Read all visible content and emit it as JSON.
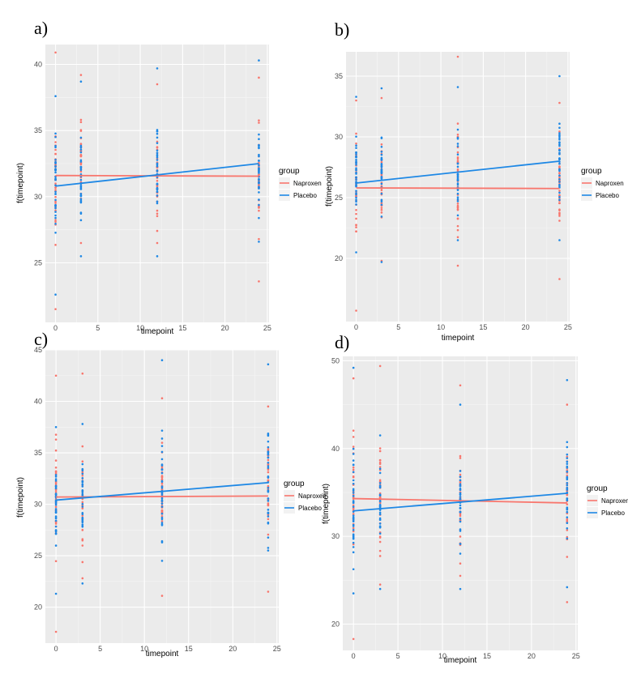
{
  "colors": {
    "naproxen": "#F8766D",
    "placebo": "#1E88E5",
    "panel_bg": "#EBEBEB",
    "grid_major": "#FFFFFF",
    "legend_key_bg": "#F2F2F2"
  },
  "chart_data": [
    {
      "type": "scatter",
      "panel_label": "a)",
      "xlabel": "timepoint",
      "ylabel": "f(timepoint)",
      "xlim": [
        -1.2,
        25.2
      ],
      "ylim": [
        20.5,
        41.5
      ],
      "x_ticks": [
        0,
        5,
        10,
        15,
        20,
        25
      ],
      "y_ticks": [
        25,
        30,
        35,
        40
      ],
      "x_tick_labels": [
        "0",
        "5",
        "10",
        "15",
        "20",
        "25"
      ],
      "y_tick_labels": [
        "25",
        "30",
        "35",
        "40"
      ],
      "legend": {
        "title": "group",
        "entries": [
          "Naproxen",
          "Placebo"
        ]
      },
      "series": [
        {
          "name": "Naproxen",
          "color_key": "naproxen",
          "points": {
            "0": {
              "min": 21.5,
              "max": 40.9,
              "center": 31.5,
              "n": 38
            },
            "3": {
              "min": 26.5,
              "max": 39.2,
              "center": 32.5,
              "n": 34
            },
            "12": {
              "min": 26.5,
              "max": 38.5,
              "center": 31.5,
              "n": 34
            },
            "24": {
              "min": 23.6,
              "max": 39.0,
              "center": 31.5,
              "n": 36
            }
          },
          "fit": {
            "x": [
              0,
              24
            ],
            "y": [
              31.6,
              31.55
            ]
          }
        },
        {
          "name": "Placebo",
          "color_key": "placebo",
          "points": {
            "0": {
              "min": 22.6,
              "max": 37.6,
              "center": 31.0,
              "n": 38
            },
            "3": {
              "min": 25.5,
              "max": 38.7,
              "center": 31.0,
              "n": 34
            },
            "12": {
              "min": 25.5,
              "max": 39.7,
              "center": 32.0,
              "n": 34
            },
            "24": {
              "min": 26.6,
              "max": 40.3,
              "center": 32.0,
              "n": 36
            }
          },
          "fit": {
            "x": [
              0,
              24
            ],
            "y": [
              30.8,
              32.5
            ]
          }
        }
      ]
    },
    {
      "type": "scatter",
      "panel_label": "b)",
      "xlabel": "timepoint",
      "ylabel": "f(timepoint)",
      "xlim": [
        -1.2,
        25.2
      ],
      "ylim": [
        14.8,
        37.0
      ],
      "x_ticks": [
        0,
        5,
        10,
        15,
        20,
        25
      ],
      "y_ticks": [
        20,
        25,
        30,
        35
      ],
      "x_tick_labels": [
        "0",
        "5",
        "10",
        "15",
        "20",
        "25"
      ],
      "y_tick_labels": [
        "20",
        "25",
        "30",
        "35"
      ],
      "legend": {
        "title": "group",
        "entries": [
          "Naproxen",
          "Placebo"
        ]
      },
      "series": [
        {
          "name": "Naproxen",
          "color_key": "naproxen",
          "points": {
            "0": {
              "min": 15.7,
              "max": 33.0,
              "center": 26.0,
              "n": 38
            },
            "3": {
              "min": 19.8,
              "max": 33.2,
              "center": 26.0,
              "n": 34
            },
            "12": {
              "min": 19.4,
              "max": 36.6,
              "center": 26.0,
              "n": 34
            },
            "24": {
              "min": 18.3,
              "max": 32.8,
              "center": 26.0,
              "n": 36
            }
          },
          "fit": {
            "x": [
              0,
              24
            ],
            "y": [
              25.8,
              25.75
            ]
          }
        },
        {
          "name": "Placebo",
          "color_key": "placebo",
          "points": {
            "0": {
              "min": 20.5,
              "max": 33.3,
              "center": 27.0,
              "n": 38
            },
            "3": {
              "min": 19.7,
              "max": 34.0,
              "center": 27.0,
              "n": 34
            },
            "12": {
              "min": 21.5,
              "max": 34.1,
              "center": 27.0,
              "n": 34
            },
            "24": {
              "min": 21.5,
              "max": 35.0,
              "center": 28.0,
              "n": 36
            }
          },
          "fit": {
            "x": [
              0,
              24
            ],
            "y": [
              26.2,
              28.0
            ]
          }
        }
      ]
    },
    {
      "type": "scatter",
      "panel_label": "c)",
      "xlabel": "timepoint",
      "ylabel": "f(timepoint)",
      "xlim": [
        -1.2,
        25.2
      ],
      "ylim": [
        16.5,
        45.0
      ],
      "x_ticks": [
        0,
        5,
        10,
        15,
        20,
        25
      ],
      "y_ticks": [
        20,
        25,
        30,
        35,
        40,
        45
      ],
      "x_tick_labels": [
        "0",
        "5",
        "10",
        "15",
        "20",
        "25"
      ],
      "y_tick_labels": [
        "20",
        "25",
        "30",
        "35",
        "40",
        "45"
      ],
      "legend": {
        "title": "group",
        "entries": [
          "Naproxen",
          "Placebo"
        ]
      },
      "series": [
        {
          "name": "Naproxen",
          "color_key": "naproxen",
          "points": {
            "0": {
              "min": 17.6,
              "max": 42.5,
              "center": 30.5,
              "n": 38
            },
            "3": {
              "min": 22.8,
              "max": 42.7,
              "center": 31.0,
              "n": 34
            },
            "12": {
              "min": 21.1,
              "max": 40.3,
              "center": 31.0,
              "n": 34
            },
            "24": {
              "min": 21.5,
              "max": 39.5,
              "center": 31.0,
              "n": 36
            }
          },
          "fit": {
            "x": [
              0,
              24
            ],
            "y": [
              30.7,
              30.8
            ]
          }
        },
        {
          "name": "Placebo",
          "color_key": "placebo",
          "points": {
            "0": {
              "min": 21.3,
              "max": 37.5,
              "center": 30.0,
              "n": 38
            },
            "3": {
              "min": 22.3,
              "max": 37.8,
              "center": 30.5,
              "n": 34
            },
            "12": {
              "min": 24.5,
              "max": 44.0,
              "center": 31.5,
              "n": 34
            },
            "24": {
              "min": 25.5,
              "max": 43.6,
              "center": 32.0,
              "n": 36
            }
          },
          "fit": {
            "x": [
              0,
              24
            ],
            "y": [
              30.4,
              32.1
            ]
          }
        }
      ]
    },
    {
      "type": "scatter",
      "panel_label": "d)",
      "xlabel": "timepoint",
      "ylabel": "f(timepoint)",
      "xlim": [
        -1.2,
        25.2
      ],
      "ylim": [
        17.0,
        50.5
      ],
      "x_ticks": [
        0,
        5,
        10,
        15,
        20,
        25
      ],
      "y_ticks": [
        20,
        30,
        40,
        50
      ],
      "x_tick_labels": [
        "0",
        "5",
        "10",
        "15",
        "20",
        "25"
      ],
      "y_tick_labels": [
        "20",
        "30",
        "40",
        "50"
      ],
      "legend": {
        "title": "group",
        "entries": [
          "Naproxen",
          "Placebo"
        ]
      },
      "series": [
        {
          "name": "Naproxen",
          "color_key": "naproxen",
          "points": {
            "0": {
              "min": 18.3,
              "max": 48.0,
              "center": 34.0,
              "n": 38
            },
            "3": {
              "min": 24.5,
              "max": 49.4,
              "center": 34.5,
              "n": 34
            },
            "12": {
              "min": 25.5,
              "max": 47.2,
              "center": 34.0,
              "n": 34
            },
            "24": {
              "min": 22.5,
              "max": 45.0,
              "center": 34.0,
              "n": 36
            }
          },
          "fit": {
            "x": [
              0,
              24
            ],
            "y": [
              34.3,
              33.8
            ]
          }
        },
        {
          "name": "Placebo",
          "color_key": "placebo",
          "points": {
            "0": {
              "min": 23.5,
              "max": 49.2,
              "center": 33.0,
              "n": 38
            },
            "3": {
              "min": 24.0,
              "max": 41.5,
              "center": 33.5,
              "n": 34
            },
            "12": {
              "min": 24.0,
              "max": 45.0,
              "center": 34.0,
              "n": 34
            },
            "24": {
              "min": 24.2,
              "max": 47.8,
              "center": 35.0,
              "n": 36
            }
          },
          "fit": {
            "x": [
              0,
              24
            ],
            "y": [
              32.9,
              34.9
            ]
          }
        }
      ]
    }
  ]
}
